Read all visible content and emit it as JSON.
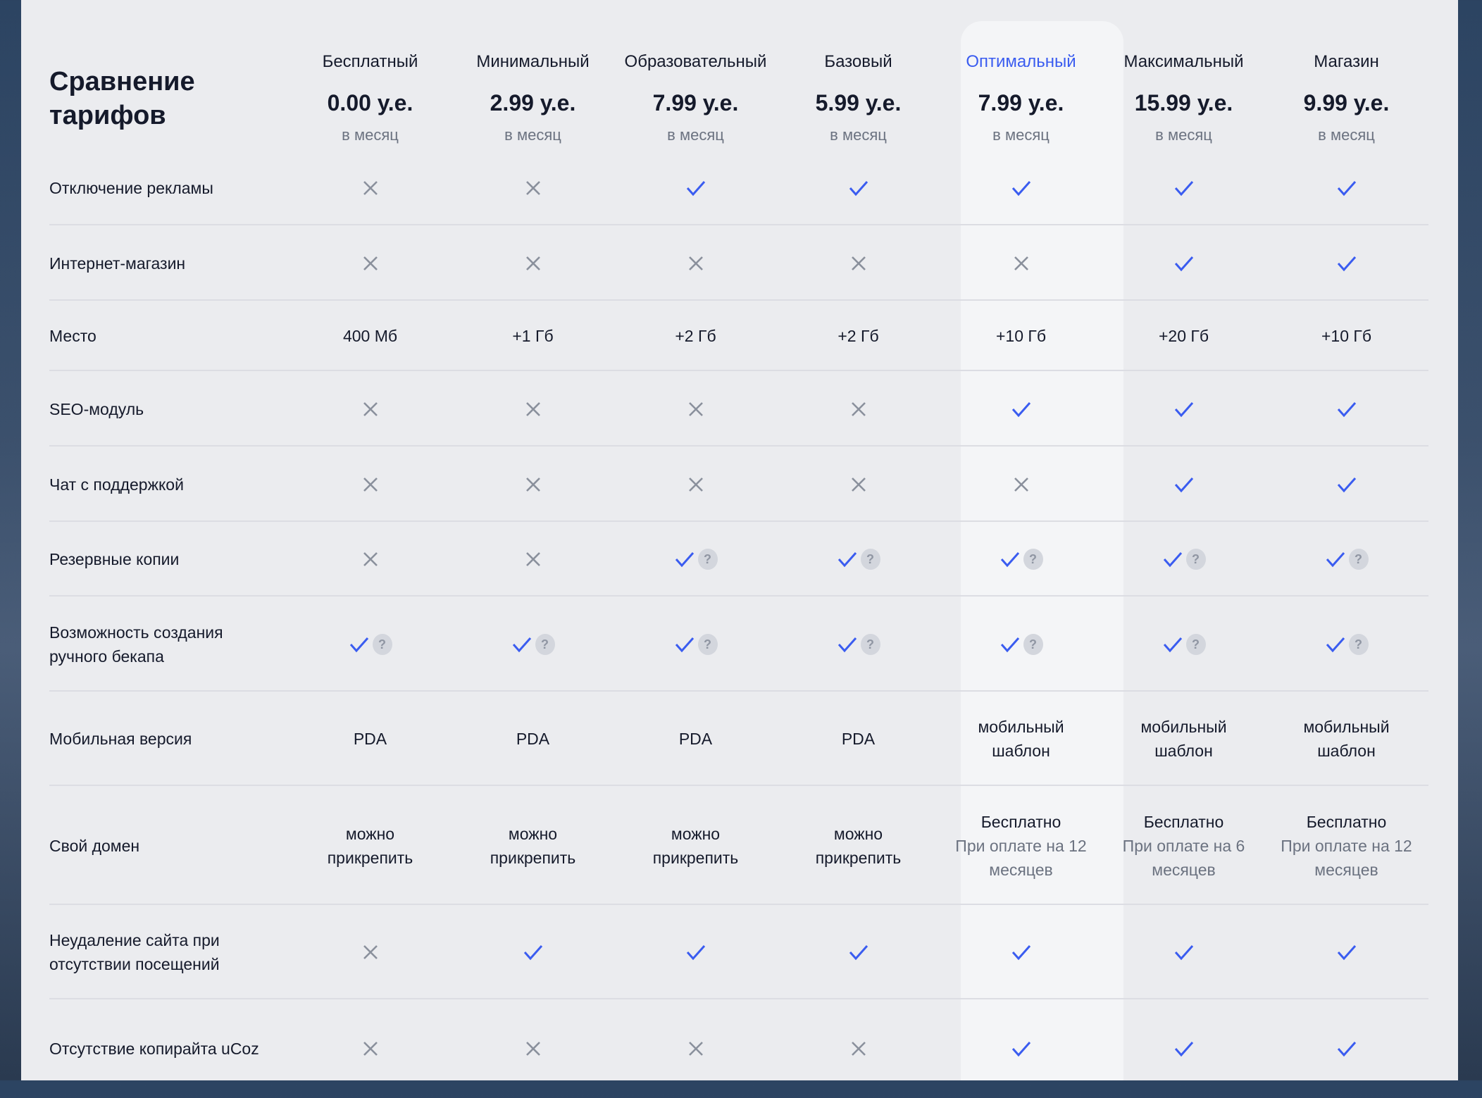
{
  "title": "Сравнение тарифов",
  "colors": {
    "accent": "#3a5cf0",
    "cross": "#8a909c",
    "highlight_column": "#f4f5f7",
    "panel": "#ebecef"
  },
  "highlighted_plan": 4,
  "plans": [
    {
      "name": "Бесплатный",
      "price": "0.00 у.е.",
      "period": "в месяц"
    },
    {
      "name": "Минимальный",
      "price": "2.99 у.е.",
      "period": "в месяц"
    },
    {
      "name": "Образовательный",
      "price": "7.99 у.е.",
      "period": "в месяц"
    },
    {
      "name": "Базовый",
      "price": "5.99 у.е.",
      "period": "в месяц"
    },
    {
      "name": "Оптимальный",
      "price": "7.99 у.е.",
      "period": "в месяц"
    },
    {
      "name": "Максимальный",
      "price": "15.99 у.е.",
      "period": "в месяц"
    },
    {
      "name": "Магазин",
      "price": "9.99 у.е.",
      "period": "в месяц"
    }
  ],
  "icons": {
    "check": "check-icon",
    "cross": "cross-icon",
    "help": "question-icon",
    "help_glyph": "?"
  },
  "rows": [
    {
      "label": "Отключение рекламы",
      "cells": [
        {
          "icon": "x"
        },
        {
          "icon": "x"
        },
        {
          "icon": "check"
        },
        {
          "icon": "check"
        },
        {
          "icon": "check"
        },
        {
          "icon": "check"
        },
        {
          "icon": "check"
        }
      ]
    },
    {
      "label": "Интернет-магазин",
      "cells": [
        {
          "icon": "x"
        },
        {
          "icon": "x"
        },
        {
          "icon": "x"
        },
        {
          "icon": "x"
        },
        {
          "icon": "x"
        },
        {
          "icon": "check"
        },
        {
          "icon": "check"
        }
      ]
    },
    {
      "label": "Место",
      "cells": [
        {
          "text": "400 Мб"
        },
        {
          "text": "+1 Гб"
        },
        {
          "text": "+2 Гб"
        },
        {
          "text": "+2 Гб"
        },
        {
          "text": "+10 Гб"
        },
        {
          "text": "+20 Гб"
        },
        {
          "text": "+10 Гб"
        }
      ]
    },
    {
      "label": "SEO-модуль",
      "cells": [
        {
          "icon": "x"
        },
        {
          "icon": "x"
        },
        {
          "icon": "x"
        },
        {
          "icon": "x"
        },
        {
          "icon": "check"
        },
        {
          "icon": "check"
        },
        {
          "icon": "check"
        }
      ]
    },
    {
      "label": "Чат с поддержкой",
      "cells": [
        {
          "icon": "x"
        },
        {
          "icon": "x"
        },
        {
          "icon": "x"
        },
        {
          "icon": "x"
        },
        {
          "icon": "x"
        },
        {
          "icon": "check"
        },
        {
          "icon": "check"
        }
      ]
    },
    {
      "label": "Резервные копии",
      "cells": [
        {
          "icon": "x"
        },
        {
          "icon": "x"
        },
        {
          "icon": "check",
          "help": true
        },
        {
          "icon": "check",
          "help": true
        },
        {
          "icon": "check",
          "help": true
        },
        {
          "icon": "check",
          "help": true
        },
        {
          "icon": "check",
          "help": true
        }
      ]
    },
    {
      "label": "Возможность создания ручного бекапа",
      "cells": [
        {
          "icon": "check",
          "help": true
        },
        {
          "icon": "check",
          "help": true
        },
        {
          "icon": "check",
          "help": true
        },
        {
          "icon": "check",
          "help": true
        },
        {
          "icon": "check",
          "help": true
        },
        {
          "icon": "check",
          "help": true
        },
        {
          "icon": "check",
          "help": true
        }
      ]
    },
    {
      "label": "Мобильная версия",
      "cells": [
        {
          "text": "PDA"
        },
        {
          "text": "PDA"
        },
        {
          "text": "PDA"
        },
        {
          "text": "PDA"
        },
        {
          "text": "мобильный шаблон"
        },
        {
          "text": "мобильный шаблон"
        },
        {
          "text": "мобильный шаблон"
        }
      ]
    },
    {
      "label": "Свой домен",
      "cells": [
        {
          "text": "можно прикрепить"
        },
        {
          "text": "можно прикрепить"
        },
        {
          "text": "можно прикрепить"
        },
        {
          "text": "можно прикрепить"
        },
        {
          "text": "Бесплатно",
          "sub": "При оплате на 12 месяцев"
        },
        {
          "text": "Бесплатно",
          "sub": "При оплате на 6 месяцев"
        },
        {
          "text": "Бесплатно",
          "sub": "При оплате на 12 месяцев"
        }
      ]
    },
    {
      "label": "Неудаление сайта при отсутствии посещений",
      "cells": [
        {
          "icon": "x"
        },
        {
          "icon": "check"
        },
        {
          "icon": "check"
        },
        {
          "icon": "check"
        },
        {
          "icon": "check"
        },
        {
          "icon": "check"
        },
        {
          "icon": "check"
        }
      ]
    },
    {
      "label": "Отсутствие копирайта uCoz",
      "cells": [
        {
          "icon": "x"
        },
        {
          "icon": "x"
        },
        {
          "icon": "x"
        },
        {
          "icon": "x"
        },
        {
          "icon": "check"
        },
        {
          "icon": "check"
        },
        {
          "icon": "check"
        }
      ]
    }
  ]
}
